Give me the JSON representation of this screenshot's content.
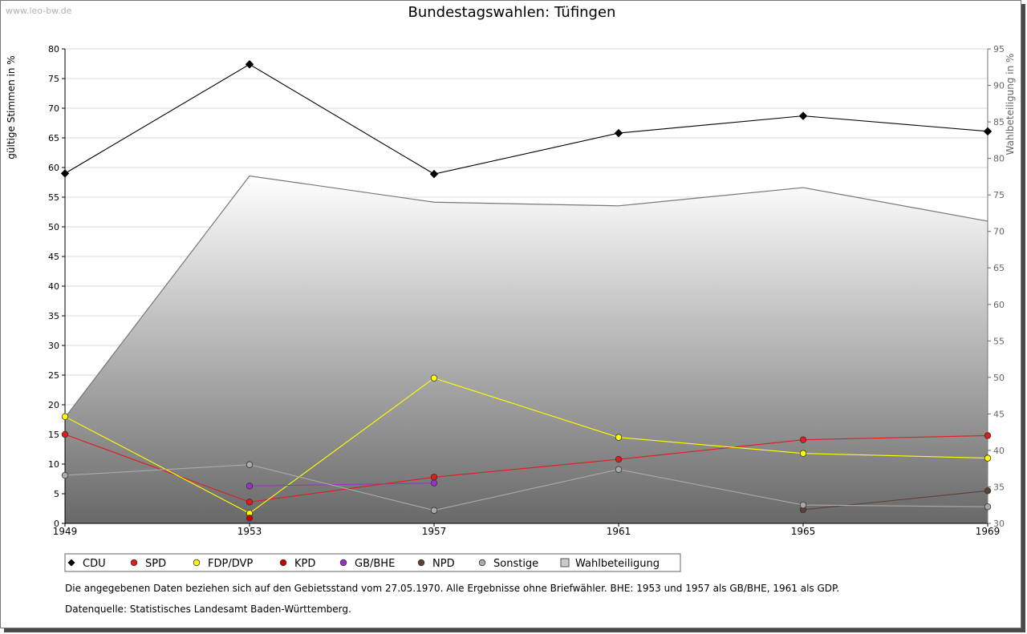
{
  "watermark": "www.leo-bw.de",
  "notes": [
    "Die angegebenen Daten beziehen sich auf den Gebietsstand vom 27.05.1970. Alle Ergebnisse ohne Briefwähler. BHE: 1953 und 1957 als GB/BHE, 1961 als GDP.",
    "Datenquelle: Statistisches Landesamt Baden-Württemberg."
  ],
  "chart_data": {
    "type": "line",
    "title": "Bundestagswahlen: Tüfingen",
    "xlabel": "",
    "ylabel": "gültige Stimmen in %",
    "y2label": "Wahlbeteiligung in %",
    "categories": [
      "1949",
      "1953",
      "1957",
      "1961",
      "1965",
      "1969"
    ],
    "ylim": [
      0,
      80
    ],
    "yticks": [
      0,
      5,
      10,
      15,
      20,
      25,
      30,
      35,
      40,
      45,
      50,
      55,
      60,
      65,
      70,
      75,
      80
    ],
    "y2lim": [
      30,
      95
    ],
    "y2ticks": [
      30,
      35,
      40,
      45,
      50,
      55,
      60,
      65,
      70,
      75,
      80,
      85,
      90,
      95
    ],
    "grid": true,
    "legend_position": "bottom",
    "series": [
      {
        "name": "CDU",
        "color": "#000000",
        "values": [
          59.0,
          77.4,
          58.9,
          65.8,
          68.7,
          66.1
        ]
      },
      {
        "name": "SPD",
        "color": "#e41a1c",
        "values": [
          15.0,
          3.6,
          7.8,
          10.8,
          14.1,
          14.8
        ]
      },
      {
        "name": "FDP/DVP",
        "color": "#ffff00",
        "values": [
          18.0,
          1.7,
          24.5,
          14.5,
          11.8,
          11.0
        ]
      },
      {
        "name": "KPD",
        "color": "#cc0000",
        "values": [
          null,
          0.9,
          null,
          null,
          null,
          null
        ]
      },
      {
        "name": "GB/BHE",
        "color": "#9932cc",
        "values": [
          null,
          6.3,
          6.8,
          null,
          null,
          null
        ]
      },
      {
        "name": "NPD",
        "color": "#5c4033",
        "values": [
          null,
          null,
          null,
          null,
          2.3,
          5.5
        ]
      },
      {
        "name": "Sonstige",
        "color": "#aaaaaa",
        "values": [
          8.1,
          9.9,
          2.2,
          9.1,
          3.1,
          2.8
        ]
      }
    ],
    "turnout": {
      "name": "Wahlbeteiligung",
      "axis": "right",
      "values": [
        44.5,
        77.6,
        74.0,
        73.5,
        76.0,
        71.4
      ]
    }
  }
}
